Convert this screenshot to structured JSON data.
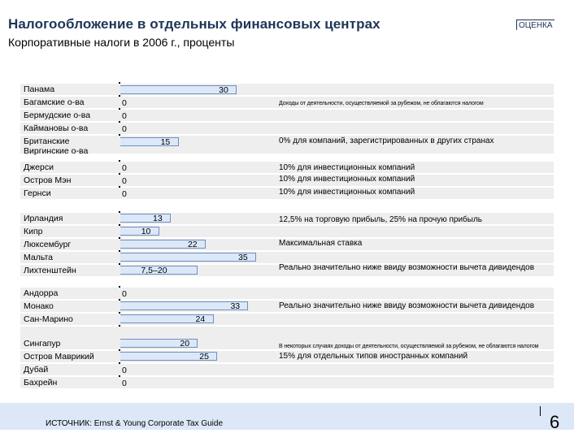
{
  "header": {
    "title": "Налогообложение в отдельных финансовых центрах",
    "subtitle": "Корпоративные налоги в 2006 г., проценты",
    "badge": "ОЦЕНКА"
  },
  "chart_data": {
    "type": "bar",
    "orientation": "horizontal",
    "title": "Корпоративные налоги в 2006 г., проценты",
    "xlim": [
      0,
      35
    ],
    "groups": [
      {
        "items": [
          {
            "name": "Панама",
            "value": 30,
            "label": "30"
          },
          {
            "name": "Багамские о-ва",
            "value": 0,
            "label": "0"
          },
          {
            "name": "Бермудские о-ва",
            "value": 0,
            "label": "0"
          },
          {
            "name": "Каймановы о-ва",
            "value": 0,
            "label": "0"
          },
          {
            "name": "Британские\nВиргинские о-ва",
            "value": 15,
            "label": "15"
          }
        ]
      },
      {
        "items": [
          {
            "name": "Джерси",
            "value": 0,
            "label": "0"
          },
          {
            "name": "Остров Мэн",
            "value": 0,
            "label": "0"
          },
          {
            "name": "Гернси",
            "value": 0,
            "label": "0"
          }
        ]
      },
      {
        "items": [
          {
            "name": "Ирландия",
            "value": 13,
            "label": "13"
          },
          {
            "name": "Кипр",
            "value": 10,
            "label": "10"
          },
          {
            "name": "Люксембург",
            "value": 22,
            "label": "22"
          },
          {
            "name": "Мальта",
            "value": 35,
            "label": "35"
          },
          {
            "name": "Лихтенштейн",
            "value": 20,
            "label": "7,5–20"
          }
        ]
      },
      {
        "items": [
          {
            "name": "Андорра",
            "value": 0,
            "label": "0"
          },
          {
            "name": "Монако",
            "value": 33,
            "label": "33"
          },
          {
            "name": "Сан-Марино",
            "value": 24,
            "label": "24"
          }
        ]
      },
      {
        "items": [
          {
            "name": "Сингапур",
            "value": 20,
            "label": "20"
          },
          {
            "name": "Остров Маврикий",
            "value": 25,
            "label": "25"
          },
          {
            "name": "Дубай",
            "value": 0,
            "label": "0"
          },
          {
            "name": "Бахрейн",
            "value": 0,
            "label": "0"
          }
        ]
      }
    ],
    "annotations": [
      "Доходы от деятельности, осуществляемой за рубежом, не облагаются налогом",
      "0% для компаний, зарегистрированных в других странах",
      "10% для инвестиционных компаний",
      "10% для инвестиционных компаний",
      "10% для инвестиционных компаний",
      "12,5% на торговую прибыль, 25% на прочую прибыль",
      "Максимальная ставка",
      "Реально значительно ниже ввиду возможности вычета дивидендов",
      "Реально значительно ниже ввиду возможности вычета дивидендов",
      "В некоторых случаях доходы от деятельности, осуществляемой за рубежом, не облагаются налогом",
      "15% для отдельных типов иностранных компаний"
    ]
  },
  "footer": {
    "source": "ИСТОЧНИК: Ernst & Young Corporate Tax Guide",
    "page_number": "6"
  }
}
